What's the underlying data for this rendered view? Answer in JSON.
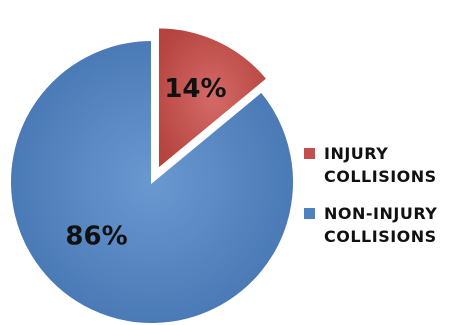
{
  "chart_data": {
    "type": "pie",
    "title": "",
    "slices": [
      {
        "label": "INJURY\nCOLLISIONS",
        "value": 14,
        "display": "14%",
        "color": "#C0504D",
        "exploded": true
      },
      {
        "label": "NON-INJURY\nCOLLISIONS",
        "value": 86,
        "display": "86%",
        "color": "#4F81BD",
        "exploded": false
      }
    ],
    "legend_position": "right"
  }
}
